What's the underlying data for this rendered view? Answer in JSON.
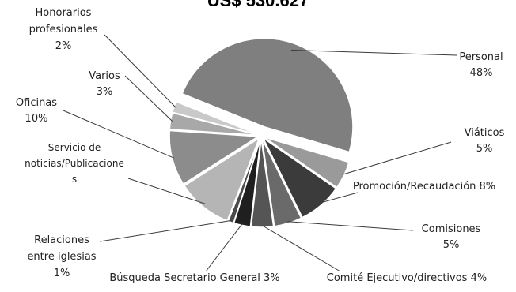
{
  "chart_data": {
    "type": "pie",
    "title": "US$ 530.627",
    "slices": [
      {
        "label": "Personal",
        "value": 48,
        "pct_label": "48%",
        "color": "#7f7f7f"
      },
      {
        "label": "Viáticos",
        "value": 5,
        "pct_label": "5%",
        "color": "#9a9a9a"
      },
      {
        "label": "Promoción/Recaudación",
        "value": 8,
        "pct_label": "8%",
        "color": "#3b3b3b"
      },
      {
        "label": "Comisiones",
        "value": 5,
        "pct_label": "5%",
        "color": "#6a6a6a"
      },
      {
        "label": "Comité Ejecutivo/directivos",
        "value": 4,
        "pct_label": "4%",
        "color": "#555555"
      },
      {
        "label": "Búsqueda Secretario General",
        "value": 3,
        "pct_label": "3%",
        "color": "#1f1f1f"
      },
      {
        "label": "Relaciones entre iglesias",
        "value": 1,
        "pct_label": "1%",
        "color": "#4a4a4a"
      },
      {
        "label": "Servicio de noticias/Publicaciones",
        "value": 10,
        "pct_label": "",
        "color": "#b5b5b5"
      },
      {
        "label": "Oficinas",
        "value": 10,
        "pct_label": "10%",
        "color": "#8c8c8c"
      },
      {
        "label": "Varios",
        "value": 3,
        "pct_label": "3%",
        "color": "#a8a8a8"
      },
      {
        "label": "Honorarios profesionales",
        "value": 2,
        "pct_label": "2%",
        "color": "#c9c9c9"
      }
    ]
  },
  "labels": {
    "personal": [
      "Personal",
      "48%"
    ],
    "viaticos": [
      "Viáticos",
      "5%"
    ],
    "promocion": [
      "Promoción/Recaudación 8%"
    ],
    "comisiones": [
      "Comisiones",
      "5%"
    ],
    "comite": [
      "Comité Ejecutivo/directivos 4%"
    ],
    "busqueda": [
      "Búsqueda Secretario General 3%"
    ],
    "relaciones": [
      "Relaciones",
      "entre iglesias",
      "1%"
    ],
    "servicio": [
      "Servicio de",
      "noticias/Publicacione",
      "s"
    ],
    "oficinas": [
      "Oficinas",
      "10%"
    ],
    "varios": [
      "Varios",
      "3%"
    ],
    "honorarios": [
      "Honorarios",
      "profesionales",
      "2%"
    ]
  }
}
